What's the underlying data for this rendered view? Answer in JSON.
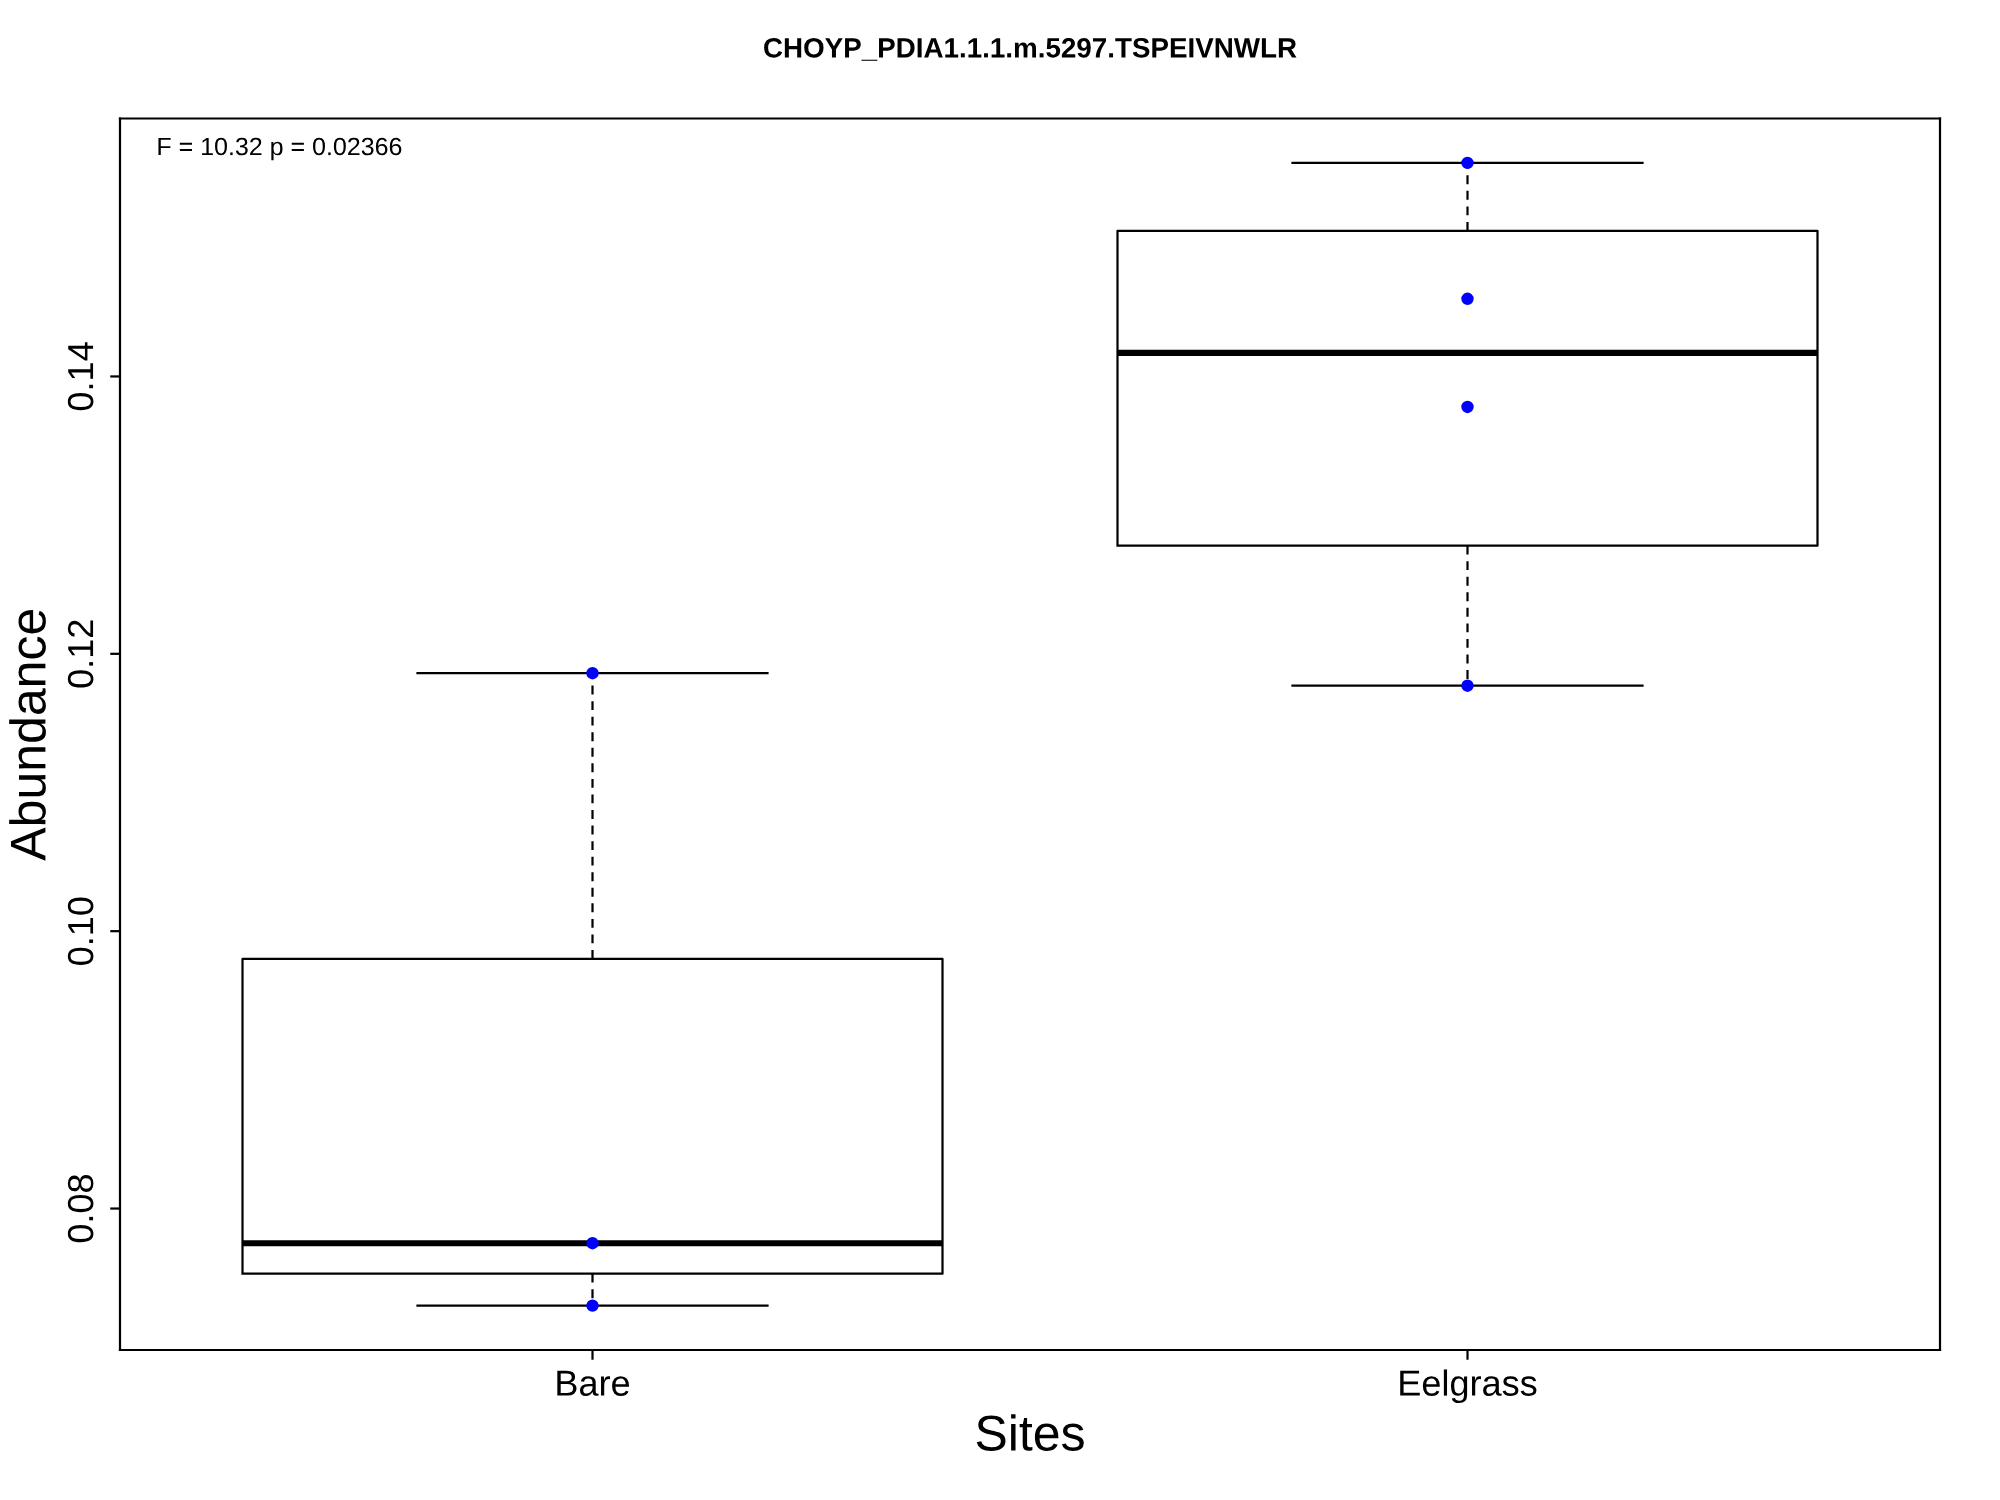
{
  "chart_data": {
    "type": "box",
    "title": "CHOYP_PDIA1.1.1.m.5297.TSPEIVNWLR",
    "xlabel": "Sites",
    "ylabel": "Abundance",
    "categories": [
      "Bare",
      "Eelgrass"
    ],
    "boxes": [
      {
        "low": 0.073,
        "q1": 0.0753,
        "median": 0.0775,
        "q3": 0.098,
        "high": 0.1186
      },
      {
        "low": 0.1177,
        "q1": 0.1278,
        "median": 0.1417,
        "q3": 0.1505,
        "high": 0.1554
      }
    ],
    "series": [
      {
        "type": "scatter",
        "color": "#0000ff",
        "x": [
          "Bare",
          "Bare",
          "Bare",
          "Eelgrass",
          "Eelgrass",
          "Eelgrass",
          "Eelgrass"
        ],
        "values": [
          0.1186,
          0.0775,
          0.073,
          0.1554,
          0.1456,
          0.1378,
          0.1177
        ]
      }
    ],
    "annotations": [
      "F = 10.32 p = 0.02366"
    ],
    "ylim": [
      0.0698,
      0.1586
    ],
    "yticks": [
      0.08,
      {
        "value": 0.1,
        "label": "0.10"
      },
      0.12,
      0.14
    ],
    "grid": false,
    "legend": false
  }
}
